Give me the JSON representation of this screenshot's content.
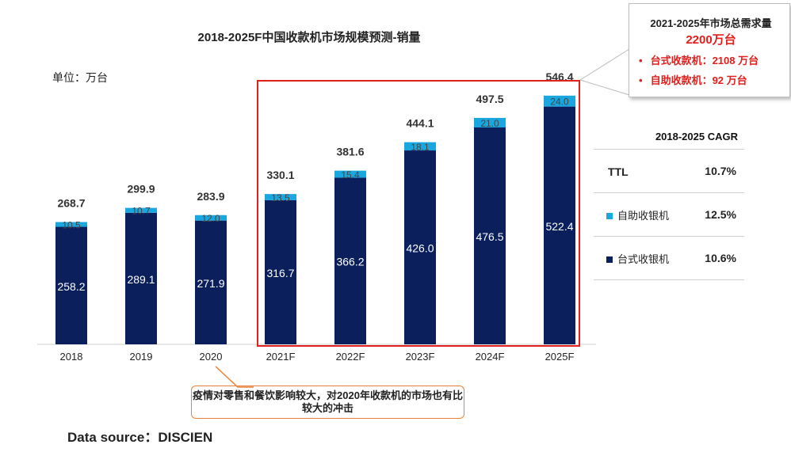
{
  "chart_data": {
    "type": "bar",
    "stacked": true,
    "title": "2018-2025F中国收款机市场规模预测-销量",
    "unit_label": "单位：万台",
    "categories": [
      "2018",
      "2019",
      "2020",
      "2021F",
      "2022F",
      "2023F",
      "2024F",
      "2025F"
    ],
    "series": [
      {
        "name": "台式收银机",
        "color": "#0b1f5c",
        "values": [
          258.2,
          289.1,
          271.9,
          316.7,
          366.2,
          426.0,
          476.5,
          522.4
        ]
      },
      {
        "name": "自助收银机",
        "color": "#1aa7e0",
        "values": [
          10.5,
          10.7,
          12.0,
          13.5,
          15.4,
          18.1,
          21.0,
          24.0
        ]
      }
    ],
    "series_labels": [
      [
        "258.2",
        "289.1",
        "271.9",
        "316.7",
        "366.2",
        "426.0",
        "476.5",
        "522.4"
      ],
      [
        "10.5",
        "10.7",
        "12.0",
        "13.5",
        "15.4",
        "18.1",
        "21.0",
        "24.0"
      ]
    ],
    "totals": [
      "268.7",
      "299.9",
      "283.9",
      "330.1",
      "381.6",
      "444.1",
      "497.5",
      "546.4"
    ],
    "ylim": [
      0,
      600
    ],
    "grid": false
  },
  "callout": {
    "title": "2021-2025年市场总需求量",
    "total": "2200万台",
    "items": [
      "台式收款机：2108 万台",
      "自助收款机：92 万台"
    ]
  },
  "cagr": {
    "header": "2018-2025 CAGR",
    "rows": [
      {
        "name": "TTL",
        "value": "10.7%"
      },
      {
        "name": "自助收银机",
        "value": "12.5%",
        "color": "#1aa7e0"
      },
      {
        "name": "台式收银机",
        "value": "10.6%",
        "color": "#0b1f5c"
      }
    ]
  },
  "note": "疫情对零售和餐饮影响较大，对2020年收款机的市场也有比较大的冲击",
  "source": "Data source：DISCIEN"
}
